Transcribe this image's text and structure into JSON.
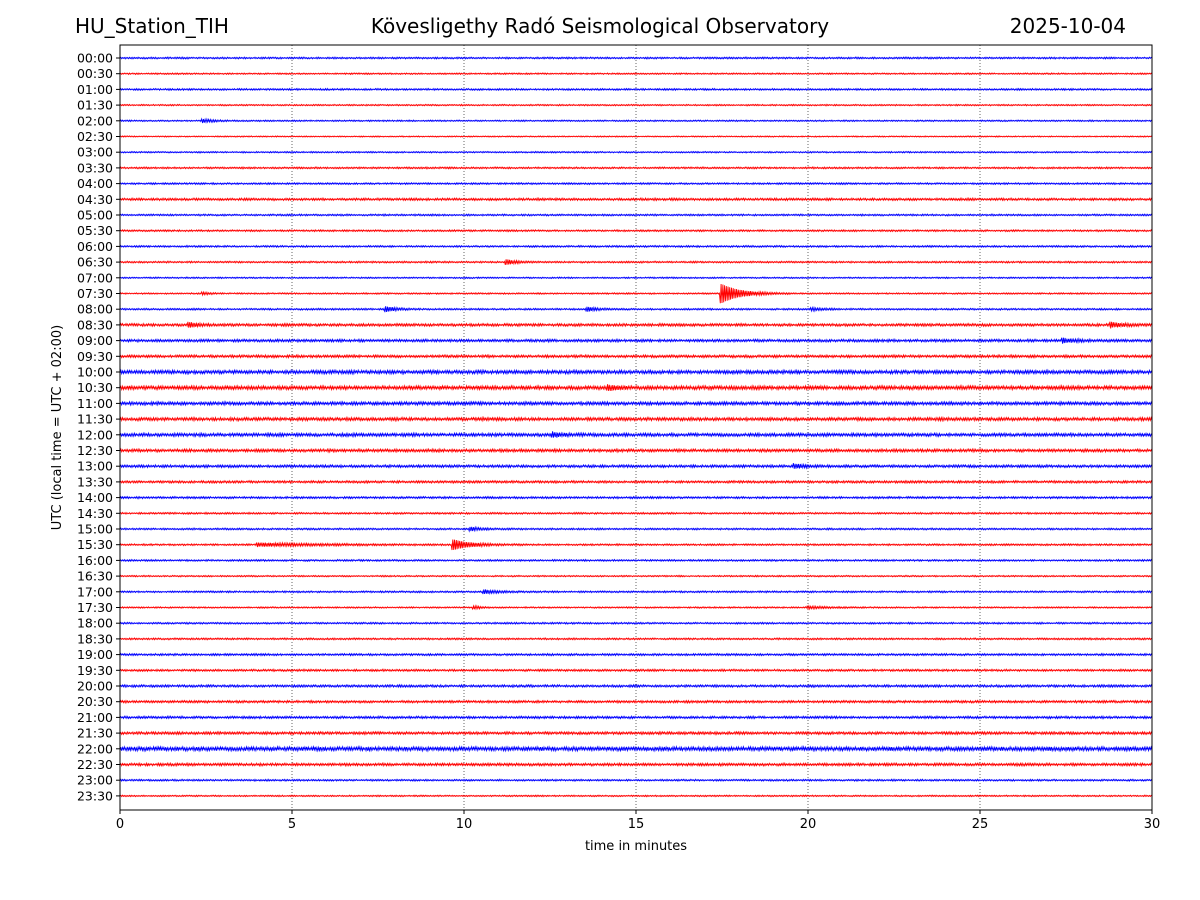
{
  "header": {
    "station": "HU_Station_TIH",
    "observatory": "Kövesligethy Radó Seismological Observatory",
    "date": "2025-10-04"
  },
  "chart_data": {
    "type": "line",
    "title": "Kövesligethy Radó Seismological Observatory",
    "xlabel": "time in minutes",
    "ylabel": "UTC (local time = UTC + 02:00)",
    "xlim": [
      0,
      30
    ],
    "xticks": [
      "0",
      "5",
      "10",
      "15",
      "20",
      "25",
      "30"
    ],
    "xtick_values": [
      0,
      5,
      10,
      15,
      20,
      25,
      30
    ],
    "grid": "vertical dotted at each x tick",
    "colors": {
      "even": "#0000ff",
      "odd": "#ff0000",
      "grid": "#000000"
    },
    "rows": [
      "00:00",
      "00:30",
      "01:00",
      "01:30",
      "02:00",
      "02:30",
      "03:00",
      "03:30",
      "04:00",
      "04:30",
      "05:00",
      "05:30",
      "06:00",
      "06:30",
      "07:00",
      "07:30",
      "08:00",
      "08:30",
      "09:00",
      "09:30",
      "10:00",
      "10:30",
      "11:00",
      "11:30",
      "12:00",
      "12:30",
      "13:00",
      "13:30",
      "14:00",
      "14:30",
      "15:00",
      "15:30",
      "16:00",
      "16:30",
      "17:00",
      "17:30",
      "18:00",
      "18:30",
      "19:00",
      "19:30",
      "20:00",
      "20:30",
      "21:00",
      "21:30",
      "22:00",
      "22:30",
      "23:00",
      "23:30"
    ],
    "noise_level": [
      0.6,
      0.5,
      0.6,
      0.5,
      0.5,
      0.4,
      0.5,
      0.6,
      0.6,
      0.8,
      0.6,
      0.6,
      0.6,
      0.6,
      0.5,
      0.5,
      0.6,
      0.9,
      0.9,
      0.9,
      1.2,
      1.3,
      1.1,
      1.1,
      1.1,
      1.0,
      0.9,
      0.8,
      0.7,
      0.6,
      0.6,
      0.6,
      0.6,
      0.5,
      0.6,
      0.5,
      0.6,
      0.6,
      0.7,
      0.7,
      0.8,
      0.8,
      0.8,
      0.9,
      1.4,
      0.9,
      0.6,
      0.5
    ],
    "events": [
      {
        "row": 4,
        "t": 2.4,
        "amp": 1.5,
        "dur": 0.3
      },
      {
        "row": 13,
        "t": 11.25,
        "amp": 2.2,
        "dur": 0.25
      },
      {
        "row": 15,
        "t": 17.5,
        "amp": 9.0,
        "dur": 0.5
      },
      {
        "row": 15,
        "t": 2.4,
        "amp": 1.0,
        "dur": 0.2
      },
      {
        "row": 16,
        "t": 7.75,
        "amp": 2.3,
        "dur": 0.25
      },
      {
        "row": 16,
        "t": 13.6,
        "amp": 1.8,
        "dur": 0.25
      },
      {
        "row": 16,
        "t": 20.1,
        "amp": 1.2,
        "dur": 0.3
      },
      {
        "row": 17,
        "t": 2.0,
        "amp": 2.0,
        "dur": 0.25
      },
      {
        "row": 17,
        "t": 28.8,
        "amp": 2.3,
        "dur": 0.35
      },
      {
        "row": 18,
        "t": 27.4,
        "amp": 2.0,
        "dur": 0.35
      },
      {
        "row": 21,
        "t": 14.2,
        "amp": 1.8,
        "dur": 0.25
      },
      {
        "row": 24,
        "t": 12.6,
        "amp": 2.0,
        "dur": 0.25
      },
      {
        "row": 26,
        "t": 19.6,
        "amp": 1.8,
        "dur": 0.3
      },
      {
        "row": 30,
        "t": 10.2,
        "amp": 1.5,
        "dur": 0.3
      },
      {
        "row": 31,
        "t": 9.7,
        "amp": 4.5,
        "dur": 0.5
      },
      {
        "row": 31,
        "t": 4.0,
        "amp": 1.5,
        "dur": 1.5
      },
      {
        "row": 34,
        "t": 10.6,
        "amp": 1.6,
        "dur": 0.35
      },
      {
        "row": 35,
        "t": 10.3,
        "amp": 1.2,
        "dur": 0.2
      },
      {
        "row": 35,
        "t": 20.0,
        "amp": 1.0,
        "dur": 0.5
      }
    ]
  }
}
